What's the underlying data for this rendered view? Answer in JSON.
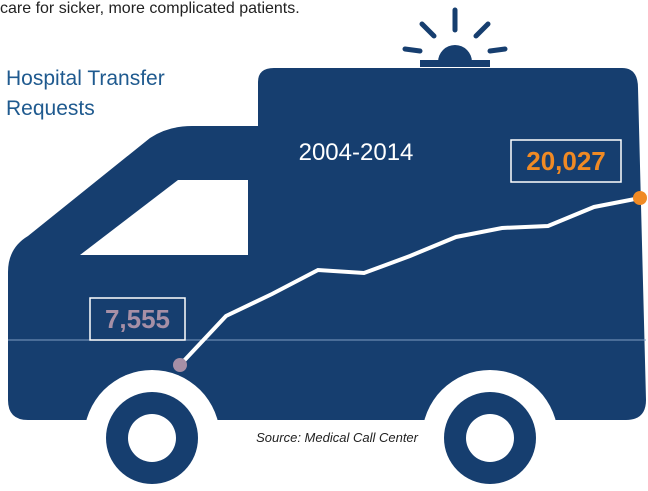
{
  "intro_text": "care for sicker, more complicated patients.",
  "chart_data": {
    "type": "line",
    "title": "Hospital Transfer Requests",
    "subtitle": "2004-2014",
    "source": "Source: Medical Call Center",
    "values": [
      7555,
      11215,
      12858,
      14651,
      14427,
      15697,
      17116,
      17788,
      17937,
      19356,
      20027
    ],
    "value_labels": [
      "7,555",
      null,
      null,
      null,
      null,
      null,
      null,
      null,
      null,
      null,
      "20,027"
    ],
    "color": "#ffffff",
    "start_color": "#a68fa6",
    "end_color": "#f08a24"
  }
}
